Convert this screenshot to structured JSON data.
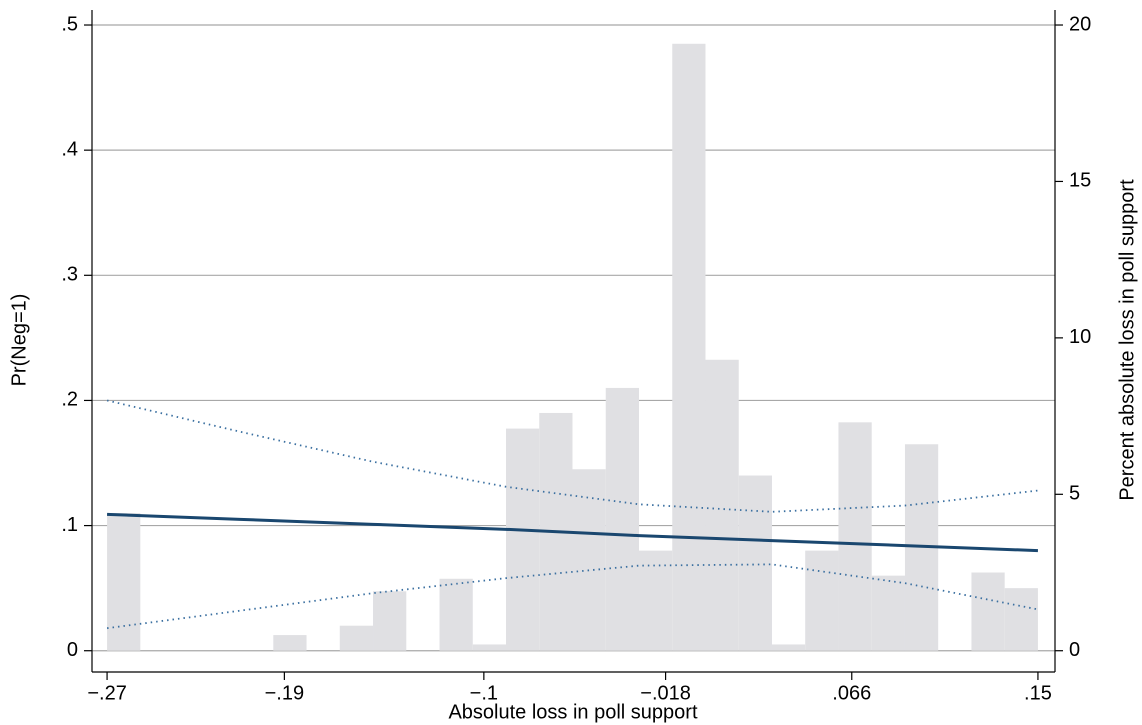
{
  "chart_data": {
    "type": "combo",
    "xlabel": "Absolute loss in poll support",
    "ylabel": "Pr(Neg=1)",
    "y2label": "Percent absolute loss in poll support",
    "xlim": [
      -0.2768,
      0.1577
    ],
    "ylim": [
      -0.017,
      0.512
    ],
    "y2lim": [
      -0.68,
      20.48
    ],
    "xticks": [
      {
        "value": -0.27,
        "label": "−.27"
      },
      {
        "value": -0.19,
        "label": "−.19"
      },
      {
        "value": -0.1,
        "label": "−.1"
      },
      {
        "value": -0.018,
        "label": "−.018"
      },
      {
        "value": 0.066,
        "label": ".066"
      },
      {
        "value": 0.15,
        "label": ".15"
      }
    ],
    "yticks": [
      0,
      {
        "value": 0.1,
        "label": ".1"
      },
      {
        "value": 0.2,
        "label": ".2"
      },
      {
        "value": 0.3,
        "label": ".3"
      },
      {
        "value": 0.4,
        "label": ".4"
      },
      {
        "value": 0.5,
        "label": ".5"
      }
    ],
    "y2ticks": [
      0,
      5,
      10,
      15,
      20
    ],
    "grid": true,
    "histogram": {
      "type": "histogram",
      "axis": "y2",
      "color": "#e0e0e3",
      "bins": [
        -0.27,
        -0.255,
        -0.24,
        -0.225,
        -0.21,
        -0.195,
        -0.18,
        -0.165,
        -0.15,
        -0.135,
        -0.12,
        -0.105,
        -0.09,
        -0.075,
        -0.06,
        -0.045,
        -0.03,
        -0.015,
        0,
        0.015,
        0.03,
        0.045,
        0.06,
        0.075,
        0.09,
        0.105,
        0.12,
        0.135,
        0.15
      ],
      "values": [
        4.4,
        0,
        0,
        0,
        0,
        0.5,
        0,
        0.8,
        1.9,
        0,
        2.3,
        0.2,
        7.1,
        7.6,
        5.8,
        8.4,
        3.2,
        19.4,
        9.3,
        5.6,
        0.2,
        3.2,
        7.3,
        2.4,
        6.6,
        0,
        2.5,
        2.0
      ]
    },
    "series": [
      {
        "type": "line",
        "style": "solid",
        "color": "#1a476f",
        "x": [
          -0.27,
          -0.21,
          -0.15,
          -0.09,
          -0.03,
          0.03,
          0.09,
          0.15
        ],
        "values": [
          0.109,
          0.105,
          0.101,
          0.097,
          0.092,
          0.088,
          0.084,
          0.08
        ]
      },
      {
        "type": "line",
        "style": "dotted",
        "color": "#3a6fa0",
        "x": [
          -0.27,
          -0.21,
          -0.15,
          -0.09,
          -0.03,
          0.03,
          0.09,
          0.15
        ],
        "values": [
          0.2,
          0.175,
          0.151,
          0.131,
          0.117,
          0.111,
          0.116,
          0.128
        ]
      },
      {
        "type": "line",
        "style": "dotted",
        "color": "#3a6fa0",
        "x": [
          -0.27,
          -0.21,
          -0.15,
          -0.09,
          -0.03,
          0.03,
          0.09,
          0.15
        ],
        "values": [
          0.018,
          0.032,
          0.046,
          0.058,
          0.068,
          0.069,
          0.054,
          0.033
        ]
      }
    ]
  }
}
